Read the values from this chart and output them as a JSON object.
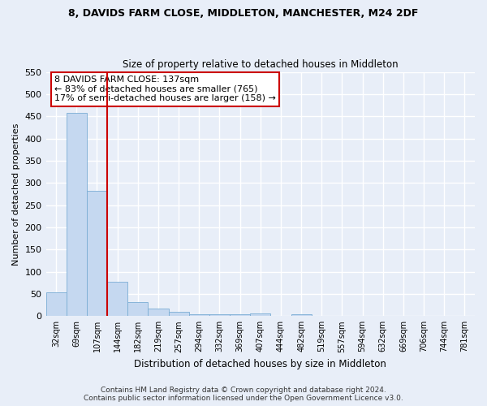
{
  "title": "8, DAVIDS FARM CLOSE, MIDDLETON, MANCHESTER, M24 2DF",
  "subtitle": "Size of property relative to detached houses in Middleton",
  "xlabel": "Distribution of detached houses by size in Middleton",
  "ylabel": "Number of detached properties",
  "bar_color": "#c5d8f0",
  "bar_edge_color": "#7aadd4",
  "vline_color": "#cc0000",
  "vline_x_index": 2.5,
  "categories": [
    "32sqm",
    "69sqm",
    "107sqm",
    "144sqm",
    "182sqm",
    "219sqm",
    "257sqm",
    "294sqm",
    "332sqm",
    "369sqm",
    "407sqm",
    "444sqm",
    "482sqm",
    "519sqm",
    "557sqm",
    "594sqm",
    "632sqm",
    "669sqm",
    "706sqm",
    "744sqm",
    "781sqm"
  ],
  "values": [
    53,
    457,
    283,
    78,
    32,
    17,
    10,
    5,
    5,
    5,
    6,
    0,
    5,
    0,
    0,
    0,
    0,
    0,
    0,
    0,
    0
  ],
  "ylim": [
    0,
    550
  ],
  "yticks": [
    0,
    50,
    100,
    150,
    200,
    250,
    300,
    350,
    400,
    450,
    500,
    550
  ],
  "annotation_text": "8 DAVIDS FARM CLOSE: 137sqm\n← 83% of detached houses are smaller (765)\n17% of semi-detached houses are larger (158) →",
  "annotation_box_facecolor": "#ffffff",
  "annotation_box_edgecolor": "#cc0000",
  "footer_line1": "Contains HM Land Registry data © Crown copyright and database right 2024.",
  "footer_line2": "Contains public sector information licensed under the Open Government Licence v3.0.",
  "background_color": "#e8eef8",
  "grid_color": "#ffffff"
}
